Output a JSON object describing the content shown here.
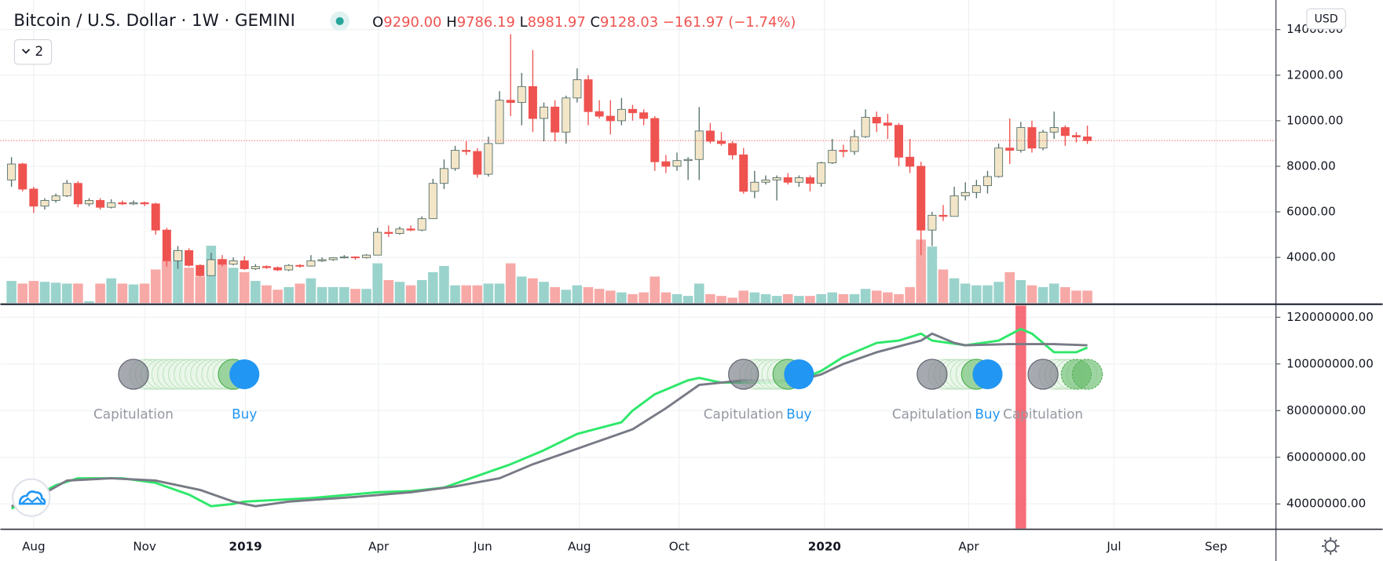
{
  "chart_data": [
    {
      "type": "candlestick",
      "title": "Bitcoin / U.S. Dollar · 1W · GEMINI",
      "legend": [
        {
          "key": "O",
          "value": "9290.00"
        },
        {
          "key": "H",
          "value": "9786.19"
        },
        {
          "key": "L",
          "value": "8981.97"
        },
        {
          "key": "C",
          "value": "9128.03"
        }
      ],
      "change": "−161.97 (−1.74%)",
      "indicators_badge": 2,
      "currency": "USD",
      "open": [
        7400,
        8100,
        7000,
        6250,
        6500,
        6700,
        7250,
        6350,
        6500,
        6200,
        6400,
        6350,
        6400,
        6350,
        5200,
        3850,
        4300,
        3650,
        3200,
        3900,
        3700,
        3850,
        3500,
        3600,
        3550,
        3450,
        3650,
        3620,
        3850,
        3900,
        3980,
        4020,
        3990,
        4100,
        5100,
        5050,
        5250,
        5200,
        5700,
        7250,
        7900,
        8700,
        8650,
        7650,
        9000,
        10900,
        10800,
        11500,
        10100,
        10600,
        9500,
        11000,
        11800,
        10400,
        10200,
        10000,
        10500,
        10350,
        10100,
        8200,
        8000,
        8250,
        8300,
        9550,
        9100,
        9000,
        8500,
        6900,
        7300,
        7400,
        7500,
        7300,
        7500,
        7250,
        8150,
        8700,
        8650,
        9300,
        10150,
        9900,
        9800,
        8400,
        8000,
        5200,
        5850,
        5800,
        6700,
        6850,
        7150,
        7550,
        8800,
        8700,
        9700,
        8800,
        9500,
        9700,
        9350,
        9290
      ],
      "high": [
        8400,
        8150,
        7100,
        6600,
        6800,
        7400,
        7350,
        6600,
        6600,
        6550,
        6500,
        6500,
        6450,
        6400,
        5300,
        4500,
        4400,
        3700,
        4200,
        4100,
        4000,
        4050,
        3700,
        3650,
        3600,
        3700,
        3700,
        4100,
        4000,
        4000,
        4100,
        4050,
        4150,
        5300,
        5400,
        5350,
        5400,
        5800,
        7450,
        8300,
        8900,
        9100,
        8800,
        9300,
        11300,
        13800,
        12100,
        13100,
        10800,
        10900,
        11100,
        12300,
        12000,
        10900,
        10900,
        11000,
        10700,
        10500,
        10200,
        8500,
        8600,
        8400,
        10600,
        9900,
        9500,
        9100,
        8800,
        7800,
        7600,
        7600,
        7700,
        7600,
        7600,
        8200,
        9200,
        8950,
        9600,
        10500,
        10400,
        10300,
        9900,
        9200,
        8200,
        6000,
        6300,
        7100,
        7300,
        7400,
        7800,
        9000,
        10100,
        9950,
        10000,
        9600,
        10400,
        9800,
        9500,
        9786.19
      ],
      "low": [
        7100,
        6900,
        5950,
        6100,
        6400,
        6650,
        6200,
        6250,
        6100,
        6150,
        6300,
        6300,
        6250,
        5000,
        3600,
        3500,
        3600,
        3150,
        3200,
        3600,
        3650,
        3450,
        3450,
        3500,
        3400,
        3400,
        3550,
        3600,
        3800,
        3850,
        3950,
        3900,
        3950,
        4100,
        4900,
        5000,
        5150,
        5150,
        5700,
        7000,
        7800,
        8500,
        7500,
        7550,
        9000,
        10200,
        9800,
        9500,
        9100,
        9100,
        9000,
        10800,
        9800,
        10100,
        9400,
        9800,
        10000,
        9800,
        7800,
        7700,
        7800,
        7400,
        7400,
        9000,
        8900,
        8300,
        6800,
        6600,
        7200,
        6500,
        7200,
        7100,
        6900,
        7100,
        8100,
        8400,
        8500,
        9250,
        9500,
        9200,
        8000,
        7700,
        4100,
        4500,
        5600,
        5800,
        6500,
        6600,
        6800,
        7500,
        8100,
        8600,
        8600,
        8700,
        9200,
        8900,
        9050,
        8981.97
      ],
      "close": [
        8100,
        7000,
        6250,
        6500,
        6700,
        7250,
        6350,
        6500,
        6200,
        6400,
        6350,
        6400,
        6350,
        5200,
        3850,
        4300,
        3650,
        3200,
        3900,
        3700,
        3850,
        3500,
        3600,
        3550,
        3450,
        3650,
        3620,
        3850,
        3900,
        3980,
        4020,
        3990,
        4100,
        5100,
        5050,
        5250,
        5200,
        5700,
        7250,
        7900,
        8700,
        8650,
        7650,
        9000,
        10900,
        10800,
        11500,
        10100,
        10600,
        9500,
        11000,
        11800,
        10400,
        10200,
        10000,
        10500,
        10350,
        10100,
        8200,
        8000,
        8250,
        8300,
        9550,
        9100,
        9000,
        8500,
        6900,
        7300,
        7400,
        7500,
        7300,
        7500,
        7250,
        8150,
        8700,
        8650,
        9300,
        10150,
        9900,
        9800,
        8400,
        8000,
        5200,
        5850,
        5800,
        6700,
        6850,
        7150,
        7550,
        8800,
        8700,
        9700,
        8800,
        9500,
        9700,
        9350,
        9290,
        9128.03
      ],
      "volume": [
        25,
        22,
        25,
        24,
        23,
        22,
        22,
        2,
        22,
        28,
        22,
        21,
        22,
        38,
        48,
        60,
        40,
        30,
        65,
        50,
        40,
        35,
        25,
        20,
        15,
        18,
        22,
        28,
        18,
        18,
        18,
        16,
        16,
        45,
        26,
        24,
        20,
        26,
        35,
        42,
        20,
        20,
        20,
        22,
        22,
        45,
        30,
        28,
        24,
        18,
        15,
        20,
        18,
        16,
        14,
        12,
        10,
        12,
        30,
        12,
        10,
        8,
        22,
        10,
        8,
        6,
        14,
        12,
        10,
        8,
        10,
        8,
        8,
        10,
        12,
        10,
        10,
        16,
        14,
        12,
        10,
        18,
        72,
        64,
        38,
        28,
        22,
        20,
        20,
        24,
        35,
        26,
        20,
        18,
        22,
        18,
        14,
        14
      ],
      "xlim": [
        -1,
        114
      ],
      "ylim": [
        2000,
        15300
      ],
      "yticks": [
        {
          "value": 4000,
          "label": "4000.00"
        },
        {
          "value": 6000,
          "label": "6000.00"
        },
        {
          "value": 8000,
          "label": "8000.00"
        },
        {
          "value": 10000,
          "label": "10000.00"
        },
        {
          "value": 12000,
          "label": "12000.00"
        },
        {
          "value": 14000,
          "label": "14000.00"
        }
      ],
      "grid": true,
      "last_price_line": true,
      "colors": {
        "up": "#f3e6c8",
        "up_border": "#56706b",
        "down": "#ef5350",
        "volume_up": "#9ad3cc",
        "volume_down": "#f7a9a7"
      }
    },
    {
      "type": "line",
      "series": [
        {
          "color": "#2ee86a",
          "x": [
            0,
            4,
            6,
            10,
            13,
            16,
            18,
            20,
            21,
            27,
            33,
            36,
            39,
            42,
            45,
            48,
            51,
            55,
            56,
            58,
            61,
            62,
            64,
            66,
            69,
            71,
            73,
            75,
            78,
            80,
            82,
            83,
            86,
            89,
            91,
            92,
            94,
            96,
            97
          ],
          "values": [
            38000000,
            48000000,
            51000000,
            51000000,
            49000000,
            44000000,
            39000000,
            40000000,
            41000000,
            42500000,
            45000000,
            45500000,
            47000000,
            52000000,
            57000000,
            63000000,
            70000000,
            75000000,
            80000000,
            87000000,
            93000000,
            94000000,
            92000000,
            92000000,
            92000000,
            93000000,
            97000000,
            103000000,
            109000000,
            110000000,
            113000000,
            110000000,
            108000000,
            110000000,
            115000000,
            113000000,
            105000000,
            105000000,
            107000000
          ]
        },
        {
          "color": "#787b86",
          "x": [
            0,
            2,
            5,
            9,
            13,
            17,
            20,
            22,
            25,
            31,
            36,
            40,
            44,
            47,
            50,
            53,
            56,
            59,
            62,
            66,
            69,
            71,
            73,
            75,
            78,
            82,
            83,
            85,
            86,
            90,
            94,
            97
          ],
          "values": [
            39000000,
            42000000,
            50000000,
            51000000,
            50000000,
            46000000,
            41000000,
            39000000,
            41000000,
            43000000,
            45000000,
            47500000,
            51000000,
            57000000,
            62000000,
            67000000,
            72000000,
            81000000,
            91000000,
            93000000,
            93000000,
            93000000,
            95500000,
            100000000,
            105000000,
            110000000,
            113000000,
            109000000,
            108000000,
            108500000,
            108500000,
            108000000
          ]
        }
      ],
      "signals": [
        {
          "label": "Capitulation",
          "x": 11
        },
        {
          "label": "Buy",
          "x": 21
        },
        {
          "label": "Capitulation",
          "x": 66
        },
        {
          "label": "Buy",
          "x": 71
        },
        {
          "label": "Capitulation",
          "x": 83
        },
        {
          "label": "Buy",
          "x": 88
        },
        {
          "label": "Capitulation",
          "x": 93
        }
      ],
      "highlight": {
        "x": 91,
        "color": "#f23645"
      },
      "xlim": [
        -1,
        114
      ],
      "xticks": [
        {
          "value": 2,
          "label": "Aug"
        },
        {
          "value": 12,
          "label": "Nov"
        },
        {
          "value": 21.1,
          "label": "2019"
        },
        {
          "value": 33.1,
          "label": "Apr"
        },
        {
          "value": 42.5,
          "label": "Jun"
        },
        {
          "value": 51.2,
          "label": "Aug"
        },
        {
          "value": 60.2,
          "label": "Oct"
        },
        {
          "value": 73.3,
          "label": "2020"
        },
        {
          "value": 86.3,
          "label": "Apr"
        },
        {
          "value": 99.4,
          "label": "Jul"
        },
        {
          "value": 108.6,
          "label": "Sep"
        }
      ],
      "ylim": [
        29500000,
        125000000
      ],
      "yticks": [
        {
          "value": 40000000,
          "label": "40000000.00"
        },
        {
          "value": 60000000,
          "label": "60000000.00"
        },
        {
          "value": 80000000,
          "label": "80000000.00"
        },
        {
          "value": 100000000,
          "label": "100000000.00"
        },
        {
          "value": 120000000,
          "label": "120000000.00"
        }
      ],
      "grid": true
    }
  ]
}
